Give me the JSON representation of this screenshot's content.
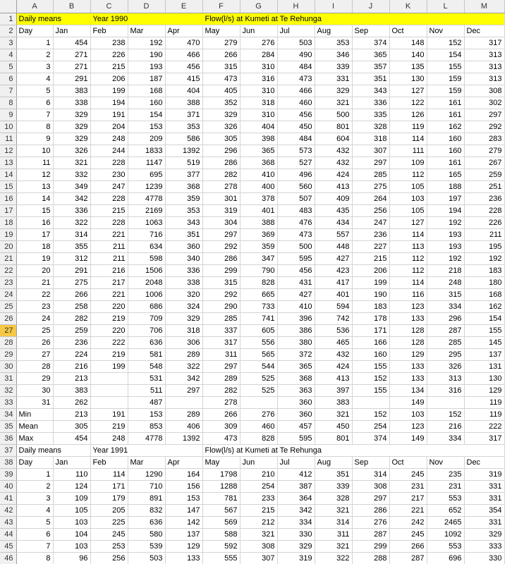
{
  "columns": [
    "A",
    "B",
    "C",
    "D",
    "E",
    "F",
    "G",
    "H",
    "I",
    "J",
    "K",
    "L",
    "M"
  ],
  "selected_row": 27,
  "rows": [
    {
      "n": 1,
      "hl": true,
      "title": {
        "a": "Daily means",
        "b": "Year 1990",
        "c": "Flow(l/s) at Kumeti at Te Rehunga"
      }
    },
    {
      "n": 2,
      "cells": [
        "Day",
        "Jan",
        "Feb",
        "Mar",
        "Apr",
        "May",
        "Jun",
        "Jul",
        "Aug",
        "Sep",
        "Oct",
        "Nov",
        "Dec"
      ]
    },
    {
      "n": 3,
      "cells": [
        "1",
        "454",
        "238",
        "192",
        "470",
        "279",
        "276",
        "503",
        "353",
        "374",
        "148",
        "152",
        "317"
      ]
    },
    {
      "n": 4,
      "cells": [
        "2",
        "271",
        "226",
        "190",
        "466",
        "266",
        "284",
        "490",
        "346",
        "365",
        "140",
        "154",
        "313"
      ]
    },
    {
      "n": 5,
      "cells": [
        "3",
        "271",
        "215",
        "193",
        "456",
        "315",
        "310",
        "484",
        "339",
        "357",
        "135",
        "155",
        "313"
      ]
    },
    {
      "n": 6,
      "cells": [
        "4",
        "291",
        "206",
        "187",
        "415",
        "473",
        "316",
        "473",
        "331",
        "351",
        "130",
        "159",
        "313"
      ]
    },
    {
      "n": 7,
      "cells": [
        "5",
        "383",
        "199",
        "168",
        "404",
        "405",
        "310",
        "466",
        "329",
        "343",
        "127",
        "159",
        "308"
      ]
    },
    {
      "n": 8,
      "cells": [
        "6",
        "338",
        "194",
        "160",
        "388",
        "352",
        "318",
        "460",
        "321",
        "336",
        "122",
        "161",
        "302"
      ]
    },
    {
      "n": 9,
      "cells": [
        "7",
        "329",
        "191",
        "154",
        "371",
        "329",
        "310",
        "456",
        "500",
        "335",
        "126",
        "161",
        "297"
      ]
    },
    {
      "n": 10,
      "cells": [
        "8",
        "329",
        "204",
        "153",
        "353",
        "326",
        "404",
        "450",
        "801",
        "328",
        "119",
        "162",
        "292"
      ]
    },
    {
      "n": 11,
      "cells": [
        "9",
        "329",
        "248",
        "209",
        "586",
        "305",
        "398",
        "484",
        "604",
        "318",
        "114",
        "160",
        "283"
      ]
    },
    {
      "n": 12,
      "cells": [
        "10",
        "326",
        "244",
        "1833",
        "1392",
        "296",
        "365",
        "573",
        "432",
        "307",
        "111",
        "160",
        "279"
      ]
    },
    {
      "n": 13,
      "cells": [
        "11",
        "321",
        "228",
        "1147",
        "519",
        "286",
        "368",
        "527",
        "432",
        "297",
        "109",
        "161",
        "267"
      ]
    },
    {
      "n": 14,
      "cells": [
        "12",
        "332",
        "230",
        "695",
        "377",
        "282",
        "410",
        "496",
        "424",
        "285",
        "112",
        "165",
        "259"
      ]
    },
    {
      "n": 15,
      "cells": [
        "13",
        "349",
        "247",
        "1239",
        "368",
        "278",
        "400",
        "560",
        "413",
        "275",
        "105",
        "188",
        "251"
      ]
    },
    {
      "n": 16,
      "cells": [
        "14",
        "342",
        "228",
        "4778",
        "359",
        "301",
        "378",
        "507",
        "409",
        "264",
        "103",
        "197",
        "236"
      ]
    },
    {
      "n": 17,
      "cells": [
        "15",
        "336",
        "215",
        "2169",
        "353",
        "319",
        "401",
        "483",
        "435",
        "256",
        "105",
        "194",
        "228"
      ]
    },
    {
      "n": 18,
      "cells": [
        "16",
        "322",
        "228",
        "1063",
        "343",
        "304",
        "388",
        "476",
        "434",
        "247",
        "127",
        "192",
        "226"
      ]
    },
    {
      "n": 19,
      "cells": [
        "17",
        "314",
        "221",
        "716",
        "351",
        "297",
        "369",
        "473",
        "557",
        "236",
        "114",
        "193",
        "211"
      ]
    },
    {
      "n": 20,
      "cells": [
        "18",
        "355",
        "211",
        "634",
        "360",
        "292",
        "359",
        "500",
        "448",
        "227",
        "113",
        "193",
        "195"
      ]
    },
    {
      "n": 21,
      "cells": [
        "19",
        "312",
        "211",
        "598",
        "340",
        "286",
        "347",
        "595",
        "427",
        "215",
        "112",
        "192",
        "192"
      ]
    },
    {
      "n": 22,
      "cells": [
        "20",
        "291",
        "216",
        "1506",
        "336",
        "299",
        "790",
        "456",
        "423",
        "206",
        "112",
        "218",
        "183"
      ]
    },
    {
      "n": 23,
      "cells": [
        "21",
        "275",
        "217",
        "2048",
        "338",
        "315",
        "828",
        "431",
        "417",
        "199",
        "114",
        "248",
        "180"
      ]
    },
    {
      "n": 24,
      "cells": [
        "22",
        "266",
        "221",
        "1006",
        "320",
        "292",
        "665",
        "427",
        "401",
        "190",
        "116",
        "315",
        "168"
      ]
    },
    {
      "n": 25,
      "cells": [
        "23",
        "258",
        "220",
        "686",
        "324",
        "290",
        "733",
        "410",
        "594",
        "183",
        "123",
        "334",
        "162"
      ]
    },
    {
      "n": 26,
      "cells": [
        "24",
        "282",
        "219",
        "709",
        "329",
        "285",
        "741",
        "396",
        "742",
        "178",
        "133",
        "296",
        "154"
      ]
    },
    {
      "n": 27,
      "cells": [
        "25",
        "259",
        "220",
        "706",
        "318",
        "337",
        "605",
        "386",
        "536",
        "171",
        "128",
        "287",
        "155"
      ]
    },
    {
      "n": 28,
      "cells": [
        "26",
        "236",
        "222",
        "636",
        "306",
        "317",
        "556",
        "380",
        "465",
        "166",
        "128",
        "285",
        "145"
      ]
    },
    {
      "n": 29,
      "cells": [
        "27",
        "224",
        "219",
        "581",
        "289",
        "311",
        "565",
        "372",
        "432",
        "160",
        "129",
        "295",
        "137"
      ]
    },
    {
      "n": 30,
      "cells": [
        "28",
        "216",
        "199",
        "548",
        "322",
        "297",
        "544",
        "365",
        "424",
        "155",
        "133",
        "326",
        "131"
      ]
    },
    {
      "n": 31,
      "cells": [
        "29",
        "213",
        "",
        "531",
        "342",
        "289",
        "525",
        "368",
        "413",
        "152",
        "133",
        "313",
        "130"
      ]
    },
    {
      "n": 32,
      "cells": [
        "30",
        "383",
        "",
        "511",
        "297",
        "282",
        "525",
        "363",
        "397",
        "155",
        "134",
        "316",
        "129"
      ]
    },
    {
      "n": 33,
      "cells": [
        "31",
        "262",
        "",
        "487",
        "",
        "278",
        "",
        "360",
        "383",
        "",
        "149",
        "",
        "119"
      ]
    },
    {
      "n": 34,
      "cells": [
        "Min",
        "213",
        "191",
        "153",
        "289",
        "266",
        "276",
        "360",
        "321",
        "152",
        "103",
        "152",
        "119"
      ]
    },
    {
      "n": 35,
      "cells": [
        "Mean",
        "305",
        "219",
        "853",
        "406",
        "309",
        "460",
        "457",
        "450",
        "254",
        "123",
        "216",
        "222"
      ]
    },
    {
      "n": 36,
      "cells": [
        "Max",
        "454",
        "248",
        "4778",
        "1392",
        "473",
        "828",
        "595",
        "801",
        "374",
        "149",
        "334",
        "317"
      ]
    },
    {
      "n": 37,
      "title": {
        "a": "Daily means",
        "b": "Year 1991",
        "c": "Flow(l/s) at Kumeti at Te Rehunga"
      }
    },
    {
      "n": 38,
      "cells": [
        "Day",
        "Jan",
        "Feb",
        "Mar",
        "Apr",
        "May",
        "Jun",
        "Jul",
        "Aug",
        "Sep",
        "Oct",
        "Nov",
        "Dec"
      ]
    },
    {
      "n": 39,
      "cells": [
        "1",
        "110",
        "114",
        "1290",
        "164",
        "1798",
        "210",
        "412",
        "351",
        "314",
        "245",
        "235",
        "319"
      ]
    },
    {
      "n": 40,
      "cells": [
        "2",
        "124",
        "171",
        "710",
        "156",
        "1288",
        "254",
        "387",
        "339",
        "308",
        "231",
        "231",
        "331"
      ]
    },
    {
      "n": 41,
      "cells": [
        "3",
        "109",
        "179",
        "891",
        "153",
        "781",
        "233",
        "364",
        "328",
        "297",
        "217",
        "553",
        "331"
      ]
    },
    {
      "n": 42,
      "cells": [
        "4",
        "105",
        "205",
        "832",
        "147",
        "567",
        "215",
        "342",
        "321",
        "286",
        "221",
        "652",
        "354"
      ]
    },
    {
      "n": 43,
      "cells": [
        "5",
        "103",
        "225",
        "636",
        "142",
        "569",
        "212",
        "334",
        "314",
        "276",
        "242",
        "2465",
        "331"
      ]
    },
    {
      "n": 44,
      "cells": [
        "6",
        "104",
        "245",
        "580",
        "137",
        "588",
        "321",
        "330",
        "311",
        "287",
        "245",
        "1092",
        "329"
      ]
    },
    {
      "n": 45,
      "cells": [
        "7",
        "103",
        "253",
        "539",
        "129",
        "592",
        "308",
        "329",
        "321",
        "299",
        "266",
        "553",
        "333"
      ]
    },
    {
      "n": 46,
      "cells": [
        "8",
        "96",
        "256",
        "503",
        "133",
        "555",
        "307",
        "319",
        "322",
        "288",
        "287",
        "696",
        "330"
      ]
    }
  ]
}
